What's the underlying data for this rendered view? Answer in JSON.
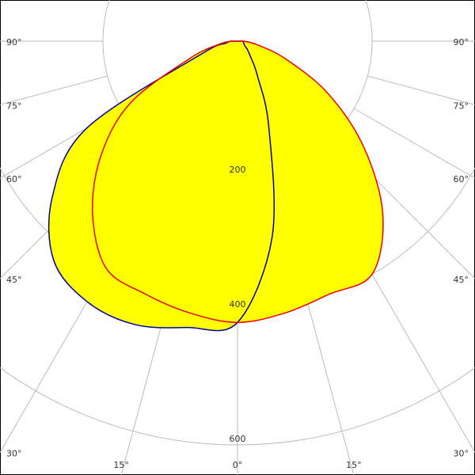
{
  "chart_data": {
    "type": "polar",
    "angles": [
      -90,
      -80,
      -70,
      -60,
      -50,
      -40,
      -30,
      -20,
      -10,
      0,
      10,
      20,
      30,
      40,
      50,
      60,
      70,
      80,
      90
    ],
    "series": [
      {
        "color": "#0000aa",
        "values": [
          10,
          18,
          59,
          259,
          359,
          425,
          447,
          448,
          432,
          418,
          296,
          136,
          59,
          30,
          19,
          12,
          10,
          9,
          8
        ]
      },
      {
        "color": "#ee0000",
        "values": [
          10,
          29,
          76,
          184,
          265,
          335,
          390,
          400,
          410,
          418,
          410,
          400,
          400,
          336,
          245,
          155,
          75,
          29,
          10
        ]
      }
    ],
    "fill": "#ffff00",
    "rlim": [
      0,
      600
    ],
    "rticks": [
      200,
      400,
      600
    ],
    "angle_ticks": [
      {
        "value": -90,
        "label": "90°"
      },
      {
        "value": -75,
        "label": "75°"
      },
      {
        "value": -60,
        "label": "60°"
      },
      {
        "value": -45,
        "label": "45°"
      },
      {
        "value": -30,
        "label": "30°"
      },
      {
        "value": -15,
        "label": "15°"
      },
      {
        "value": 0,
        "label": "0°"
      },
      {
        "value": 15,
        "label": "15°"
      },
      {
        "value": 30,
        "label": "30°"
      },
      {
        "value": 45,
        "label": "45°"
      },
      {
        "value": 60,
        "label": "60°"
      },
      {
        "value": 75,
        "label": "75°"
      },
      {
        "value": 90,
        "label": "90°"
      }
    ]
  }
}
